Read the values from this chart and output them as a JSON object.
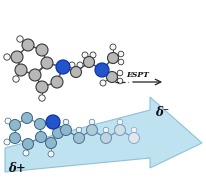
{
  "fig_width": 2.06,
  "fig_height": 1.89,
  "dpi": 100,
  "bg_color": "#ffffff",
  "arrow_color": "#b8dff0",
  "arrow_edge_color": "#88bcd4",
  "espt_label": "ESPT",
  "delta_plus": "δ+",
  "delta_minus": "δ⁻",
  "dark_atom_color": "#383838",
  "blue_atom_color": "#2255cc",
  "light_gray_atom": "#b8b8b8",
  "white_atom_color": "#f8f8f8",
  "steel_blue_atom": "#90b8cc",
  "light_steel_atom": "#b8d4e0",
  "bond_dark": "#505050",
  "bond_light": "#6888a0"
}
